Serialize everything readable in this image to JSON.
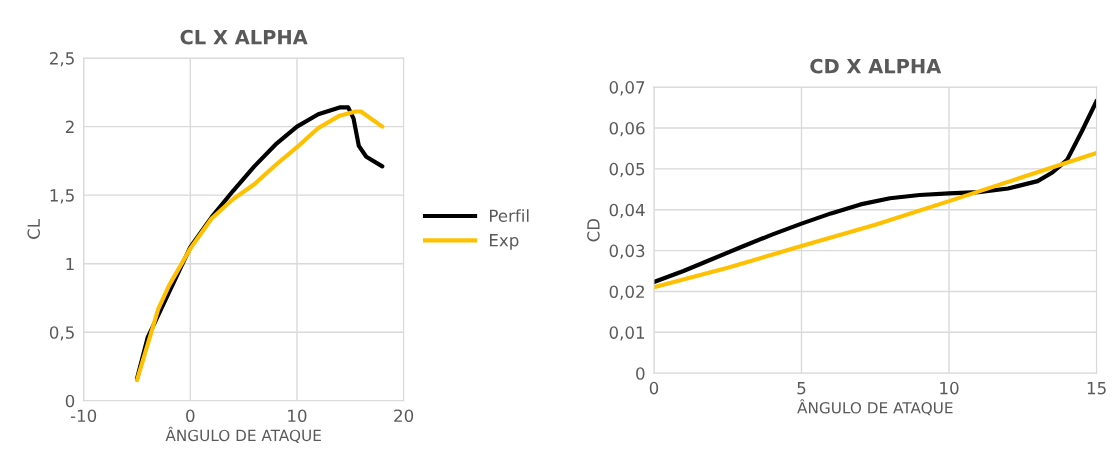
{
  "chart_data": [
    {
      "type": "line",
      "title": "CL X ALPHA",
      "xlabel": "ÂNGULO DE ATAQUE",
      "ylabel": "CL",
      "xlim": [
        -10,
        20
      ],
      "xticks": [
        -10,
        0,
        10,
        20
      ],
      "ylim": [
        0,
        2.5
      ],
      "yticks": [
        0,
        {
          "value": 0.5,
          "label": "0,5"
        },
        1,
        {
          "value": 1.5,
          "label": "1,5"
        },
        2,
        {
          "value": 2.5,
          "label": "2,5"
        }
      ],
      "grid": true,
      "legend": "right",
      "marker": "none",
      "line_style": "solid",
      "series": [
        {
          "name": "Perfil",
          "color": "#000000",
          "x": [
            -5,
            -4,
            0,
            2,
            4,
            6,
            8,
            10,
            12,
            14,
            14.8,
            15.3,
            15.8,
            16.5,
            18
          ],
          "values": [
            0.16,
            0.46,
            1.12,
            1.34,
            1.53,
            1.71,
            1.87,
            2.0,
            2.09,
            2.14,
            2.14,
            2.06,
            1.86,
            1.78,
            1.71
          ]
        },
        {
          "name": "Exp",
          "color": "#ffc000",
          "x": [
            -5,
            -3,
            -2,
            0,
            2,
            4,
            6,
            8,
            10,
            12,
            14,
            15.5,
            16,
            18
          ],
          "values": [
            0.15,
            0.67,
            0.84,
            1.11,
            1.33,
            1.47,
            1.58,
            1.72,
            1.85,
            1.99,
            2.08,
            2.11,
            2.11,
            2.0
          ]
        }
      ]
    },
    {
      "type": "line",
      "title": "CD X ALPHA",
      "xlabel": "ÂNGULO DE ATAQUE",
      "ylabel": "CD",
      "xlim": [
        0,
        15
      ],
      "xticks": [
        0,
        5,
        10,
        15
      ],
      "ylim": [
        0,
        0.07
      ],
      "yticks": [
        0,
        {
          "value": 0.01,
          "label": "0,01"
        },
        {
          "value": 0.02,
          "label": "0,02"
        },
        {
          "value": 0.03,
          "label": "0,03"
        },
        {
          "value": 0.04,
          "label": "0,04"
        },
        {
          "value": 0.05,
          "label": "0,05"
        },
        {
          "value": 0.06,
          "label": "0,06"
        },
        {
          "value": 0.07,
          "label": "0,07"
        }
      ],
      "grid": true,
      "marker": "none",
      "line_style": "solid",
      "series": [
        {
          "color": "#000000",
          "x": [
            0,
            1,
            2,
            3,
            4,
            5,
            6,
            7,
            8,
            9,
            10,
            11,
            12,
            13,
            13.5,
            14,
            14.5,
            15
          ],
          "values": [
            0.0223,
            0.025,
            0.028,
            0.031,
            0.0339,
            0.0366,
            0.0391,
            0.0413,
            0.0428,
            0.0436,
            0.044,
            0.0443,
            0.0452,
            0.047,
            0.0491,
            0.0522,
            0.0592,
            0.0666
          ]
        },
        {
          "color": "#ffc000",
          "x": [
            0,
            2.5,
            5,
            7.5,
            10,
            12.5,
            15
          ],
          "values": [
            0.021,
            0.0258,
            0.0311,
            0.0363,
            0.0421,
            0.048,
            0.0539
          ]
        }
      ]
    }
  ]
}
